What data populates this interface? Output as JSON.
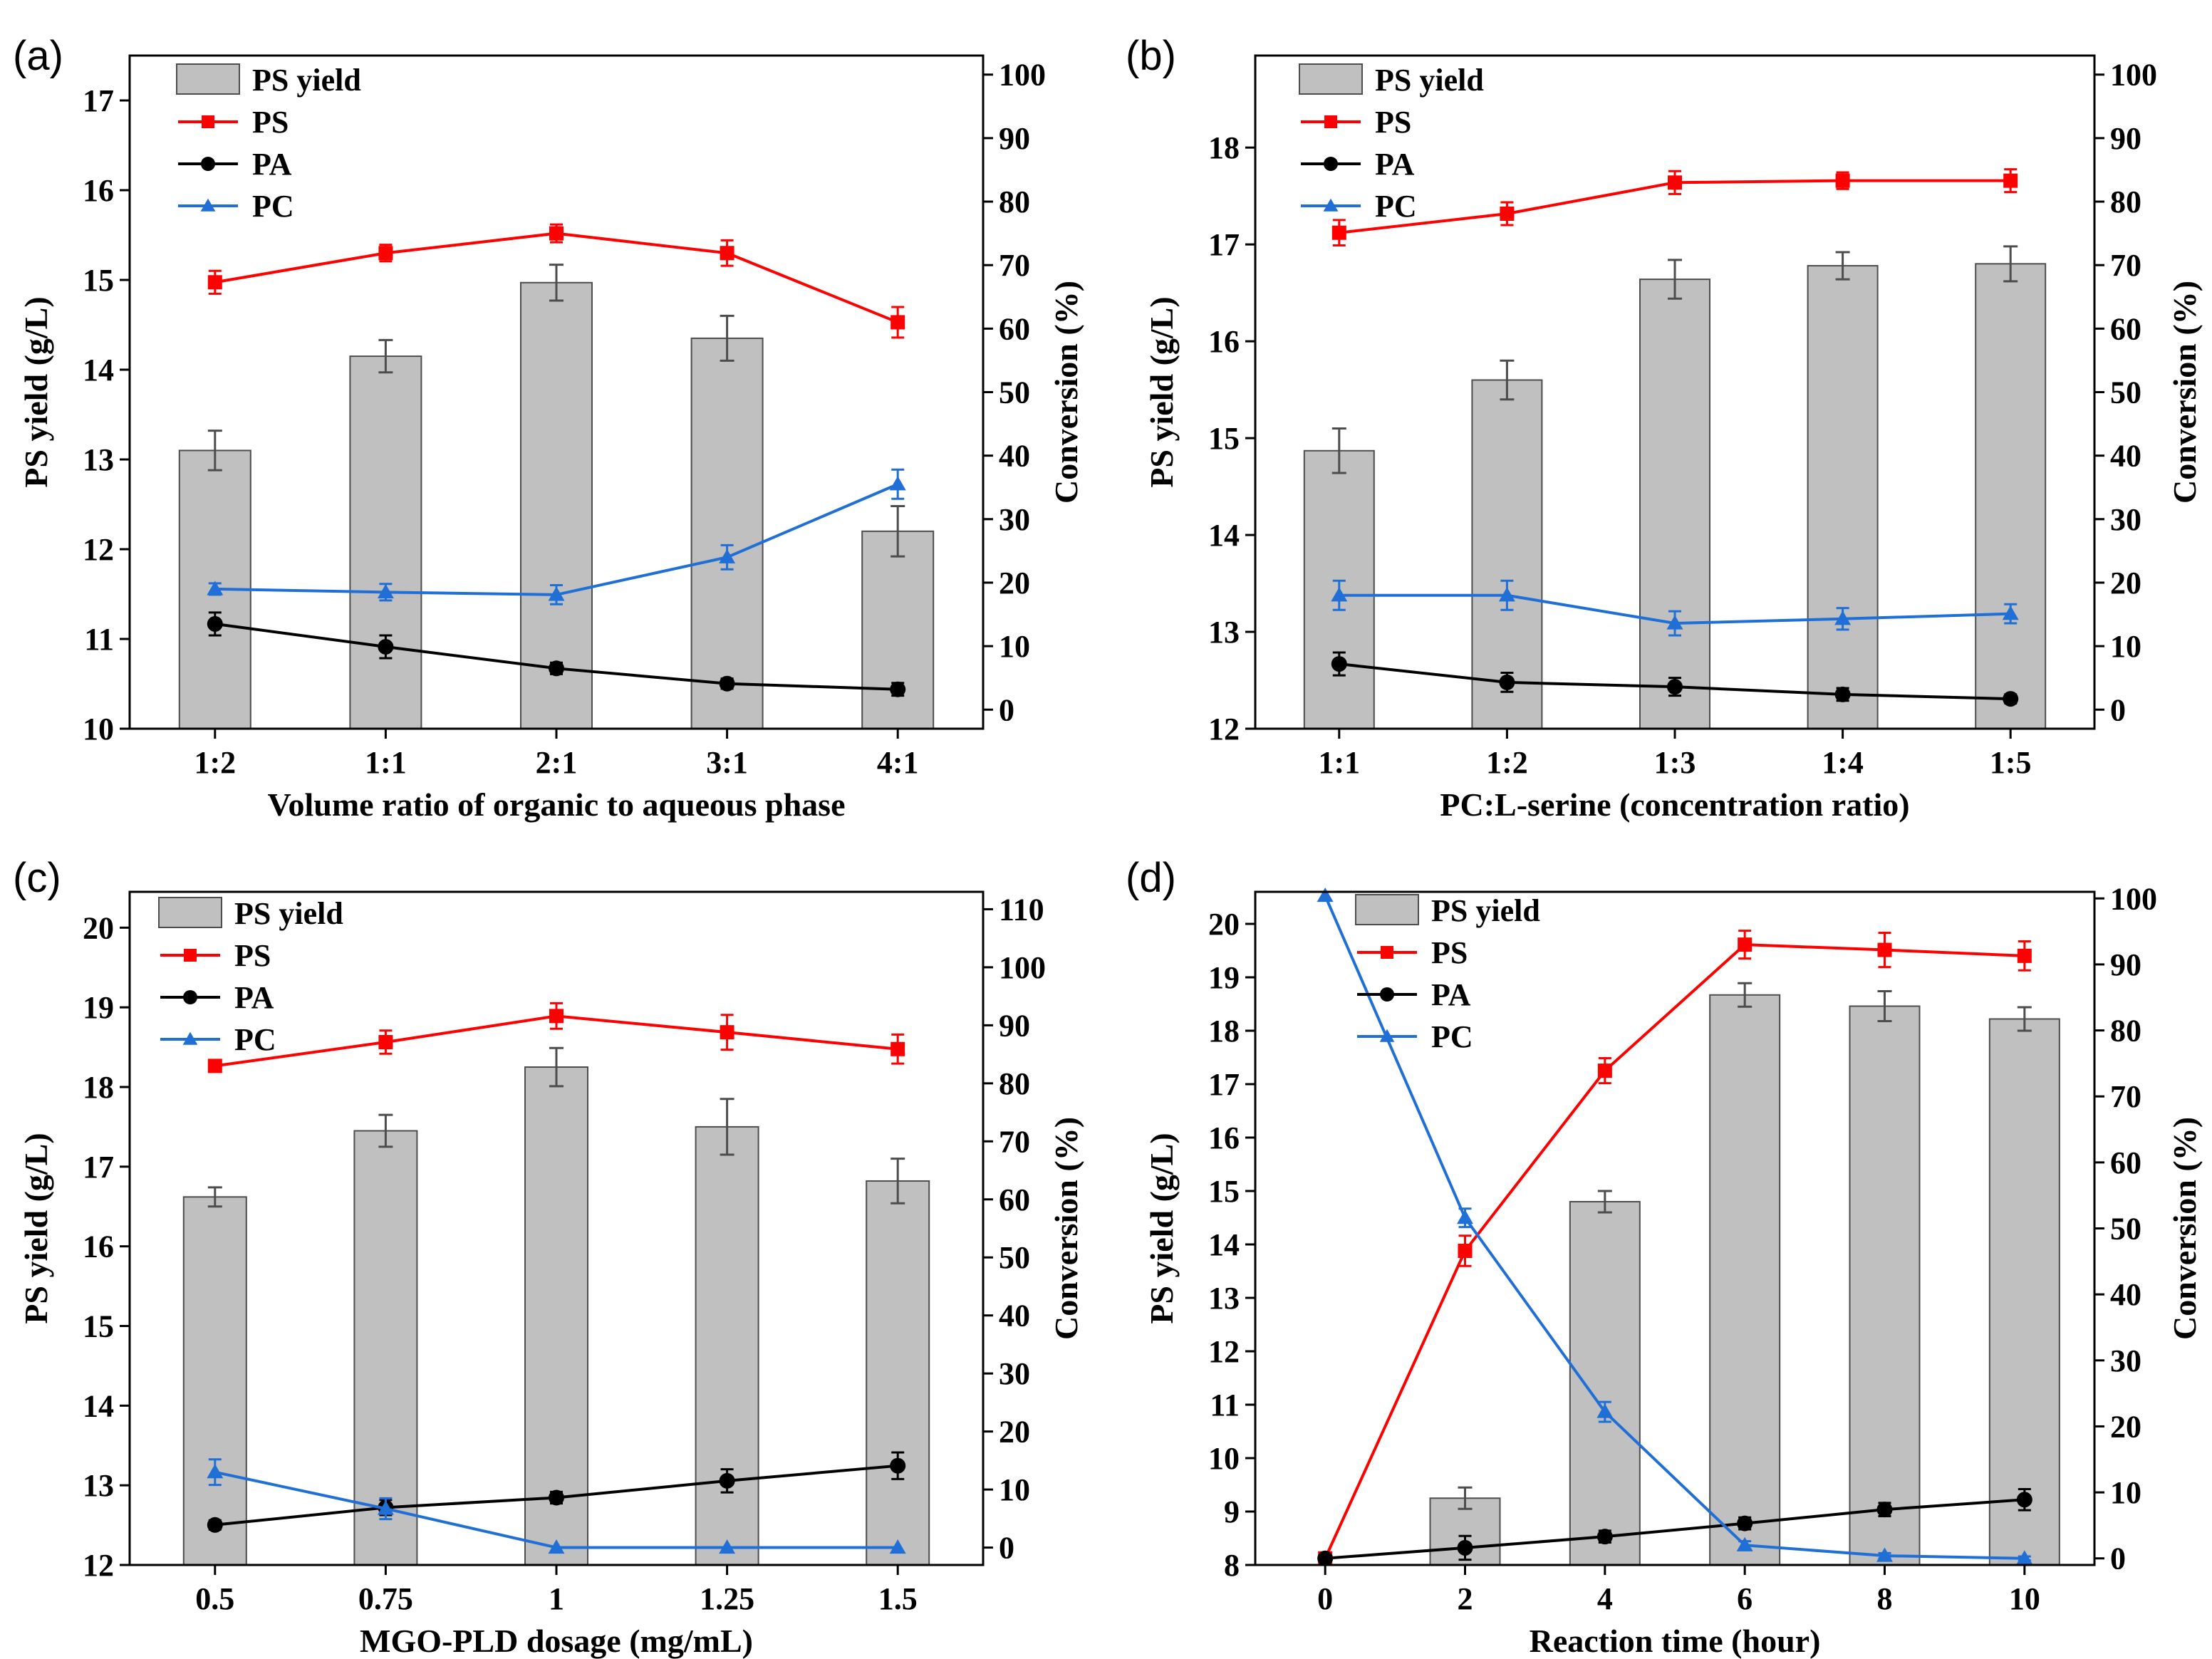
{
  "colors": {
    "bar_fill": "#c0c0c0",
    "bar_stroke": "#4d4d4d",
    "ps": "#ff0000",
    "pa": "#000000",
    "pc": "#1f6fd6",
    "axis": "#000000"
  },
  "chart_data": [
    {
      "panel": "(a)",
      "type": "bar+line",
      "xlabel": "Volume ratio of organic to aqueous phase",
      "ylabel_left": "PS yield (g/L)",
      "ylabel_right": "Conversion (%)",
      "categories": [
        "1:2",
        "1:1",
        "2:1",
        "3:1",
        "4:1"
      ],
      "left_axis": {
        "min": 10,
        "max": 17.5,
        "ticks": [
          10,
          11,
          12,
          13,
          14,
          15,
          16,
          17
        ]
      },
      "right_axis": {
        "min": -3,
        "max": 103,
        "ticks": [
          0,
          10,
          20,
          30,
          40,
          50,
          60,
          70,
          80,
          90,
          100
        ]
      },
      "bars": {
        "name": "PS yield",
        "values": [
          13.1,
          14.15,
          14.97,
          14.35,
          12.2
        ],
        "errors": [
          0.22,
          0.18,
          0.2,
          0.25,
          0.28
        ]
      },
      "series": [
        {
          "name": "PS",
          "marker": "square",
          "values": [
            67.3,
            71.9,
            75.0,
            71.9,
            61.0
          ],
          "errors": [
            1.8,
            1.3,
            1.4,
            2.0,
            2.4
          ]
        },
        {
          "name": "PA",
          "marker": "circle",
          "values": [
            13.5,
            9.9,
            6.5,
            4.1,
            3.2
          ],
          "errors": [
            1.8,
            1.8,
            0.9,
            0.8,
            1.0
          ]
        },
        {
          "name": "PC",
          "marker": "triangle",
          "values": [
            19.0,
            18.5,
            18.1,
            24.0,
            35.5
          ],
          "errors": [
            0.9,
            1.3,
            1.5,
            1.9,
            2.3
          ]
        }
      ],
      "legend": [
        "PS yield",
        "PS",
        "PA",
        "PC"
      ]
    },
    {
      "panel": "(b)",
      "type": "bar+line",
      "xlabel": "PC:L-serine (concentration ratio)",
      "ylabel_left": "PS yield (g/L)",
      "ylabel_right": "Conversion (%)",
      "categories": [
        "1:1",
        "1:2",
        "1:3",
        "1:4",
        "1:5"
      ],
      "left_axis": {
        "min": 12,
        "max": 18.95,
        "ticks": [
          12,
          13,
          14,
          15,
          16,
          17,
          18
        ]
      },
      "right_axis": {
        "min": -3,
        "max": 103,
        "ticks": [
          0,
          10,
          20,
          30,
          40,
          50,
          60,
          70,
          80,
          90,
          100
        ]
      },
      "bars": {
        "name": "PS yield",
        "values": [
          14.87,
          15.6,
          16.64,
          16.78,
          16.8
        ],
        "errors": [
          0.23,
          0.2,
          0.2,
          0.14,
          0.18
        ]
      },
      "series": [
        {
          "name": "PS",
          "marker": "square",
          "values": [
            75.1,
            78.1,
            83.0,
            83.3,
            83.3
          ],
          "errors": [
            2.0,
            1.8,
            1.8,
            1.3,
            1.8
          ]
        },
        {
          "name": "PA",
          "marker": "circle",
          "values": [
            7.2,
            4.3,
            3.6,
            2.4,
            1.7
          ],
          "errors": [
            1.8,
            1.5,
            1.4,
            1.0,
            0.7
          ]
        },
        {
          "name": "PC",
          "marker": "triangle",
          "values": [
            18.0,
            18.0,
            13.6,
            14.3,
            15.1
          ],
          "errors": [
            2.3,
            2.3,
            1.9,
            1.7,
            1.5
          ]
        }
      ],
      "legend": [
        "PS yield",
        "PS",
        "PA",
        "PC"
      ]
    },
    {
      "panel": "(c)",
      "type": "bar+line",
      "xlabel": "MGO-PLD dosage (mg/mL)",
      "ylabel_left": "PS yield (g/L)",
      "ylabel_right": "Conversion (%)",
      "categories": [
        "0.5",
        "0.75",
        "1",
        "1.25",
        "1.5"
      ],
      "left_axis": {
        "min": 12,
        "max": 20.45,
        "ticks": [
          12,
          13,
          14,
          15,
          16,
          17,
          18,
          19,
          20
        ]
      },
      "right_axis": {
        "min": -3,
        "max": 113,
        "ticks": [
          0,
          10,
          20,
          30,
          40,
          50,
          60,
          70,
          80,
          90,
          100,
          110
        ]
      },
      "bars": {
        "name": "PS yield",
        "values": [
          16.62,
          17.45,
          18.25,
          17.5,
          16.82
        ],
        "errors": [
          0.12,
          0.2,
          0.24,
          0.35,
          0.28
        ]
      },
      "series": [
        {
          "name": "PS",
          "marker": "square",
          "values": [
            83.0,
            87.1,
            91.6,
            88.8,
            85.9
          ],
          "errors": [
            1.0,
            2.0,
            2.2,
            3.0,
            2.5
          ]
        },
        {
          "name": "PA",
          "marker": "circle",
          "values": [
            3.9,
            6.9,
            8.6,
            11.5,
            14.1
          ],
          "errors": [
            0.8,
            1.3,
            1.0,
            2.0,
            2.3
          ]
        },
        {
          "name": "PC",
          "marker": "triangle",
          "values": [
            13.0,
            6.7,
            0.0,
            0.0,
            0.0
          ],
          "errors": [
            2.2,
            1.8,
            0,
            0,
            0
          ]
        }
      ],
      "legend": [
        "PS yield",
        "PS",
        "PA",
        "PC"
      ]
    },
    {
      "panel": "(d)",
      "type": "bar+line",
      "xlabel": "Reaction time (hour)",
      "ylabel_left": "PS yield (g/L)",
      "ylabel_right": "Conversion (%)",
      "categories": [
        "0",
        "2",
        "4",
        "6",
        "8",
        "10"
      ],
      "left_axis": {
        "min": 8,
        "max": 20.6,
        "ticks": [
          8,
          9,
          10,
          11,
          12,
          13,
          14,
          15,
          16,
          17,
          18,
          19,
          20
        ]
      },
      "right_axis": {
        "min": -1,
        "max": 101,
        "ticks": [
          0,
          10,
          20,
          30,
          40,
          50,
          60,
          70,
          80,
          90,
          100
        ]
      },
      "bars": {
        "name": "PS yield",
        "values": [
          null,
          9.25,
          14.8,
          18.67,
          18.46,
          18.22
        ],
        "errors": [
          null,
          0.2,
          0.2,
          0.22,
          0.28,
          0.22
        ]
      },
      "series": [
        {
          "name": "PS",
          "marker": "square",
          "values": [
            0.0,
            46.6,
            73.9,
            93.0,
            92.2,
            91.3
          ],
          "errors": [
            0,
            2.3,
            1.9,
            2.1,
            2.6,
            2.2
          ]
        },
        {
          "name": "PA",
          "marker": "circle",
          "values": [
            0.0,
            1.6,
            3.3,
            5.3,
            7.4,
            8.9
          ],
          "errors": [
            0,
            1.8,
            0.9,
            0.9,
            1.0,
            1.6
          ]
        },
        {
          "name": "PC",
          "marker": "triangle",
          "values": [
            100.4,
            51.6,
            22.2,
            2.0,
            0.4,
            0.0
          ],
          "errors": [
            0,
            1.4,
            1.5,
            0.6,
            0.4,
            0.3
          ]
        }
      ],
      "legend": [
        "PS yield",
        "PS",
        "PA",
        "PC"
      ]
    }
  ]
}
